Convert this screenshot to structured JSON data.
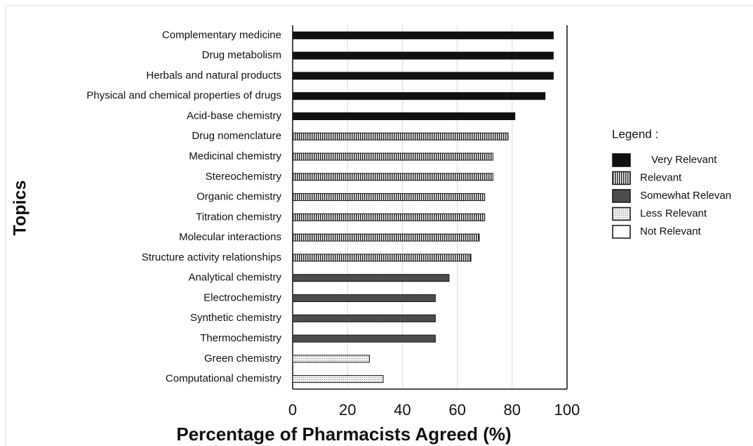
{
  "chart_data": {
    "type": "barh",
    "xlabel": "Percentage of Pharmacists Agreed (%)",
    "ylabel": "Topics",
    "legend_title": "Legend :",
    "categories": [
      "Complementary medicine",
      "Drug metabolism",
      "Herbals and natural products",
      "Physical and chemical properties of drugs",
      "Acid-base chemistry",
      "Drug nomenclature",
      "Medicinal chemistry",
      "Stereochemistry",
      "Organic chemistry",
      "Titration chemistry",
      "Molecular interactions",
      "Structure activity relationships",
      "Analytical chemistry",
      "Electrochemistry",
      "Synthetic chemistry",
      "Thermochemistry",
      "Green chemistry",
      "Computational chemistry"
    ],
    "series": [
      {
        "name": "Very Relevant",
        "color": "#111111",
        "pattern": "solid",
        "values": [
          95,
          95,
          95,
          92,
          81,
          null,
          null,
          null,
          null,
          null,
          null,
          null,
          null,
          null,
          null,
          null,
          null,
          null
        ]
      },
      {
        "name": "Relevant",
        "color": "#222222",
        "pattern": "stripes",
        "values": [
          null,
          null,
          null,
          null,
          null,
          78.5,
          73,
          73,
          70,
          70,
          68,
          65,
          null,
          null,
          null,
          null,
          null,
          null
        ]
      },
      {
        "name": "Somewhat Relevan",
        "color": "#444444",
        "pattern": "fine",
        "values": [
          null,
          null,
          null,
          null,
          null,
          null,
          null,
          null,
          null,
          null,
          null,
          null,
          57,
          52,
          52,
          52,
          null,
          null
        ]
      },
      {
        "name": "Less Relevant",
        "color": "#888888",
        "pattern": "dots",
        "values": [
          null,
          null,
          null,
          null,
          null,
          null,
          null,
          null,
          null,
          null,
          null,
          null,
          null,
          null,
          null,
          null,
          28,
          33
        ]
      },
      {
        "name": "Not Relevant",
        "color": "#ffffff",
        "pattern": "solid",
        "values": [
          null,
          null,
          null,
          null,
          null,
          null,
          null,
          null,
          null,
          null,
          null,
          null,
          null,
          null,
          null,
          null,
          null,
          null
        ]
      }
    ],
    "xlim": [
      0,
      100
    ],
    "xticks": [
      0,
      20,
      40,
      60,
      80,
      100
    ],
    "grid": true
  }
}
